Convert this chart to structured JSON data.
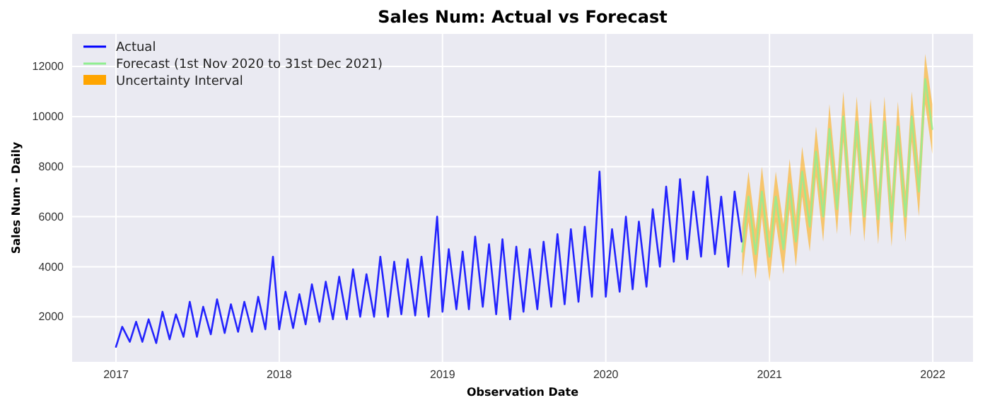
{
  "chart_data": {
    "type": "line",
    "title": "Sales Num: Actual vs Forecast",
    "xlabel": "Observation Date",
    "ylabel": "Sales Num - Daily",
    "annotations": [
      "Uncertainty Interval"
    ],
    "xlim": [
      "2016-09-25",
      "2022-04-01"
    ],
    "xticks": [
      "2017",
      "2018",
      "2019",
      "2020",
      "2021",
      "2022"
    ],
    "ylim": [
      200,
      13300
    ],
    "yticks": [
      2000,
      4000,
      6000,
      8000,
      10000,
      12000
    ],
    "grid": true,
    "legend": "top left",
    "series": [
      {
        "name": "Actual",
        "color": "#0000ff",
        "x": [
          "2017-01-01",
          "2017-01-15",
          "2017-02-01",
          "2017-02-15",
          "2017-03-01",
          "2017-03-15",
          "2017-04-01",
          "2017-04-15",
          "2017-05-01",
          "2017-05-15",
          "2017-06-01",
          "2017-06-15",
          "2017-07-01",
          "2017-07-15",
          "2017-08-01",
          "2017-08-15",
          "2017-09-01",
          "2017-09-15",
          "2017-10-01",
          "2017-10-15",
          "2017-11-01",
          "2017-11-15",
          "2017-12-01",
          "2017-12-18",
          "2018-01-01",
          "2018-01-15",
          "2018-02-01",
          "2018-02-15",
          "2018-03-01",
          "2018-03-15",
          "2018-04-01",
          "2018-04-15",
          "2018-05-01",
          "2018-05-15",
          "2018-06-01",
          "2018-06-15",
          "2018-07-01",
          "2018-07-15",
          "2018-08-01",
          "2018-08-15",
          "2018-09-01",
          "2018-09-15",
          "2018-10-01",
          "2018-10-15",
          "2018-11-01",
          "2018-11-15",
          "2018-12-01",
          "2018-12-20",
          "2019-01-01",
          "2019-01-15",
          "2019-02-01",
          "2019-02-15",
          "2019-03-01",
          "2019-03-15",
          "2019-04-01",
          "2019-04-15",
          "2019-05-01",
          "2019-05-15",
          "2019-06-01",
          "2019-06-15",
          "2019-07-01",
          "2019-07-15",
          "2019-08-01",
          "2019-08-15",
          "2019-09-01",
          "2019-09-15",
          "2019-10-01",
          "2019-10-15",
          "2019-11-01",
          "2019-11-15",
          "2019-12-01",
          "2019-12-18",
          "2020-01-01",
          "2020-01-15",
          "2020-02-01",
          "2020-02-15",
          "2020-03-01",
          "2020-03-15",
          "2020-04-01",
          "2020-04-15",
          "2020-05-01",
          "2020-05-15",
          "2020-06-01",
          "2020-06-15",
          "2020-07-01",
          "2020-07-15",
          "2020-08-01",
          "2020-08-15",
          "2020-09-01",
          "2020-09-15",
          "2020-10-01",
          "2020-10-15",
          "2020-10-31"
        ],
        "values": [
          800,
          1600,
          1000,
          1800,
          1000,
          1900,
          950,
          2200,
          1100,
          2100,
          1200,
          2600,
          1200,
          2400,
          1300,
          2700,
          1350,
          2500,
          1400,
          2600,
          1400,
          2800,
          1500,
          4400,
          1500,
          3000,
          1550,
          2900,
          1700,
          3300,
          1800,
          3400,
          1900,
          3600,
          1900,
          3900,
          2000,
          3700,
          2000,
          4400,
          2000,
          4200,
          2100,
          4300,
          2050,
          4400,
          2000,
          6000,
          2200,
          4700,
          2300,
          4600,
          2300,
          5200,
          2400,
          4900,
          2100,
          5100,
          1900,
          4800,
          2200,
          4700,
          2300,
          5000,
          2400,
          5300,
          2500,
          5500,
          2600,
          5600,
          2800,
          7800,
          2800,
          5500,
          3000,
          6000,
          3100,
          5800,
          3200,
          6300,
          4000,
          7200,
          4200,
          7500,
          4300,
          7000,
          4400,
          7600,
          4500,
          6800,
          4000,
          7000,
          5000
        ]
      },
      {
        "name": "Forecast (1st Nov 2020 to 31st Dec 2021)",
        "color": "#90ee90",
        "x": [
          "2020-11-01",
          "2020-11-15",
          "2020-12-01",
          "2020-12-15",
          "2021-01-01",
          "2021-01-15",
          "2021-02-01",
          "2021-02-15",
          "2021-03-01",
          "2021-03-15",
          "2021-04-01",
          "2021-04-15",
          "2021-05-01",
          "2021-05-15",
          "2021-06-01",
          "2021-06-15",
          "2021-07-01",
          "2021-07-15",
          "2021-08-01",
          "2021-08-15",
          "2021-09-01",
          "2021-09-15",
          "2021-10-01",
          "2021-10-15",
          "2021-11-01",
          "2021-11-15",
          "2021-12-01",
          "2021-12-15",
          "2021-12-31"
        ],
        "values": [
          4600,
          6800,
          4500,
          7000,
          4400,
          6800,
          4700,
          7300,
          5000,
          7800,
          5600,
          8600,
          6000,
          9500,
          6300,
          10000,
          6200,
          9800,
          6000,
          9700,
          5900,
          9800,
          5800,
          9600,
          6000,
          10000,
          7000,
          11500,
          9500
        ],
        "lower": [
          3600,
          5800,
          3500,
          6000,
          3400,
          5800,
          3700,
          6300,
          4000,
          6800,
          4600,
          7600,
          5000,
          8500,
          5300,
          9000,
          5200,
          8800,
          5000,
          8700,
          4900,
          8800,
          4800,
          8600,
          5000,
          9000,
          6000,
          10500,
          8500
        ],
        "upper": [
          5600,
          7800,
          5500,
          8000,
          5400,
          7800,
          5700,
          8300,
          6000,
          8800,
          6600,
          9600,
          7000,
          10500,
          7300,
          11000,
          7200,
          10800,
          7000,
          10700,
          6900,
          10800,
          6800,
          10600,
          7000,
          11000,
          8000,
          12500,
          10500
        ]
      }
    ]
  }
}
